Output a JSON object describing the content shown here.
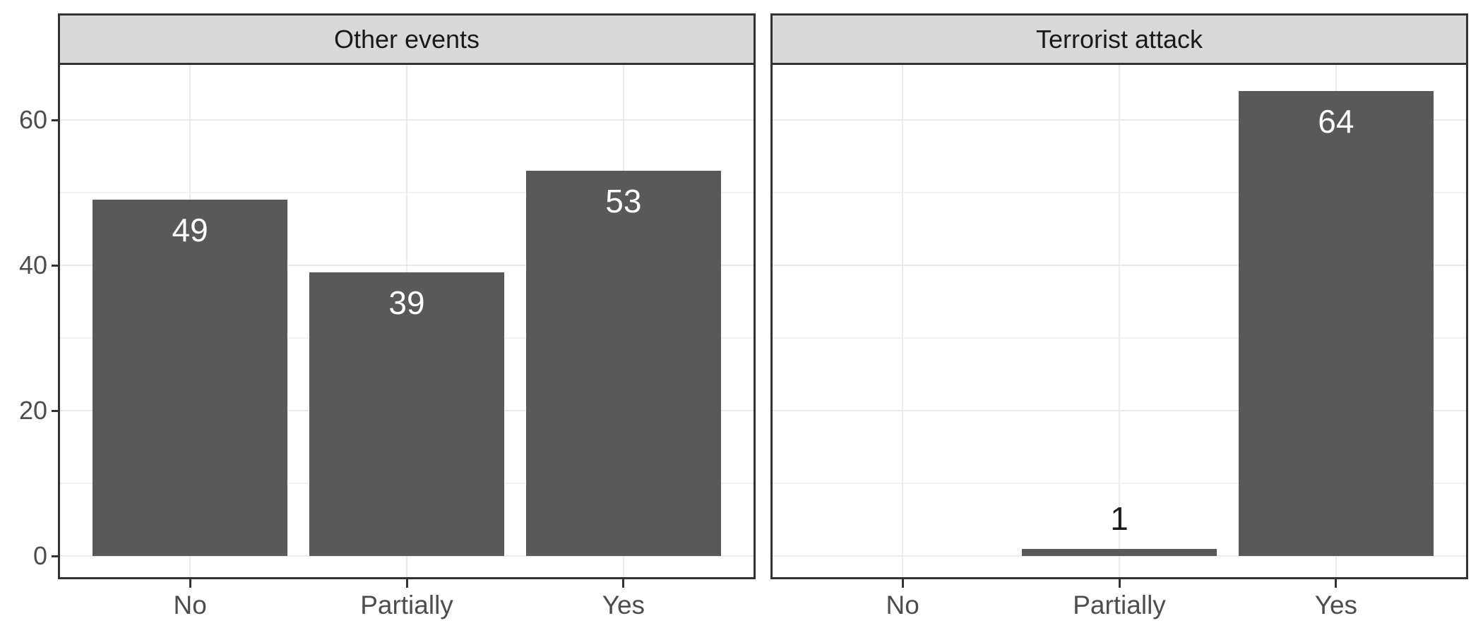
{
  "chart_data": {
    "type": "bar",
    "title": "",
    "facets": [
      {
        "label": "Other events",
        "categories": [
          "No",
          "Partially",
          "Yes"
        ],
        "values": [
          49,
          39,
          53
        ],
        "bar_labels": [
          "49",
          "39",
          "53"
        ]
      },
      {
        "label": "Terrorist attack",
        "categories": [
          "No",
          "Partially",
          "Yes"
        ],
        "values": [
          0,
          1,
          64
        ],
        "bar_labels": [
          "",
          "1",
          "64"
        ]
      }
    ],
    "x_axis": {
      "categories": [
        "No",
        "Partially",
        "Yes"
      ],
      "label": ""
    },
    "y_axis": {
      "label": "",
      "ticks": [
        0,
        20,
        40,
        60
      ],
      "minor_ticks": [
        10,
        30,
        50
      ],
      "range": [
        -2.9,
        67.6
      ]
    },
    "legend": "none",
    "grid": true,
    "colors": {
      "bar_fill": "#595959",
      "strip_bg": "#d9d9d9",
      "strip_text": "#1a1a1a",
      "panel_border": "#333333",
      "panel_bg": "#ffffff",
      "grid_major": "#ebebeb",
      "grid_minor": "#f1f1f1",
      "axis_text": "#4d4d4d",
      "tick_mark": "#333333",
      "bar_label_inside": "#ffffff",
      "bar_label_outside": "#1a1a1a",
      "background": "#ffffff"
    }
  }
}
